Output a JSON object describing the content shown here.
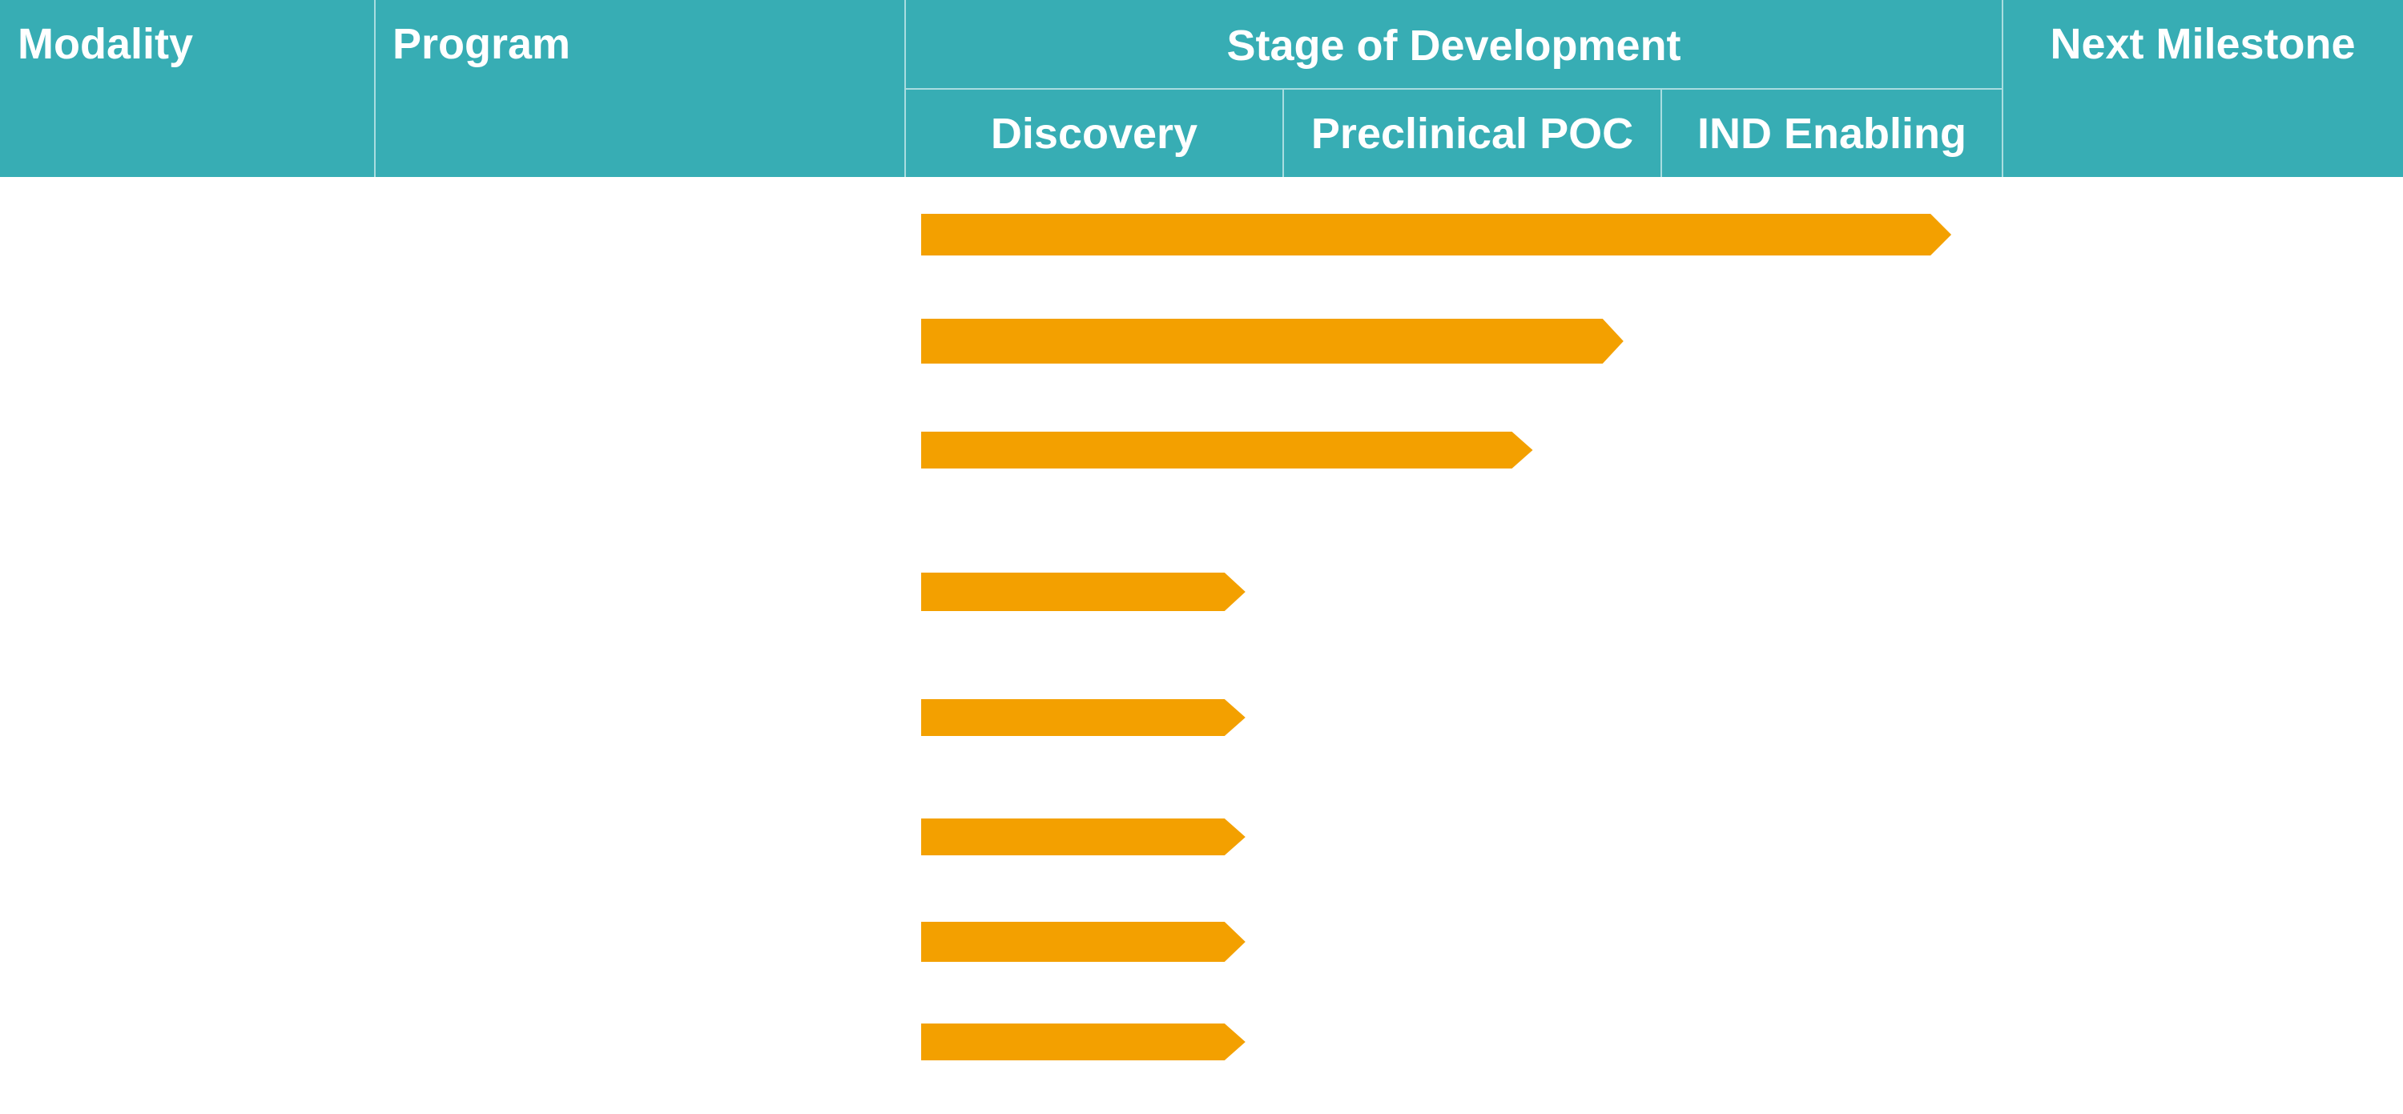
{
  "colors": {
    "header_bg": "#37adb4",
    "header_text": "#ffffff",
    "divider": "#a9dde0",
    "bar": "#f3a000"
  },
  "header": {
    "modality": "Modality",
    "program": "Program",
    "stage_of_development": "Stage of Development",
    "next_milestone": "Next Milestone",
    "stages": [
      "Discovery",
      "Preclinical POC",
      "IND Enabling"
    ]
  },
  "chart_data": {
    "type": "bar",
    "orientation": "horizontal",
    "title": "Stage of Development",
    "stages": [
      "Discovery",
      "Preclinical POC",
      "IND Enabling"
    ],
    "values": [
      2.85,
      1.9,
      1.66,
      0.9,
      0.9,
      0.9,
      0.9,
      0.9
    ],
    "xlim": [
      0,
      3
    ]
  }
}
